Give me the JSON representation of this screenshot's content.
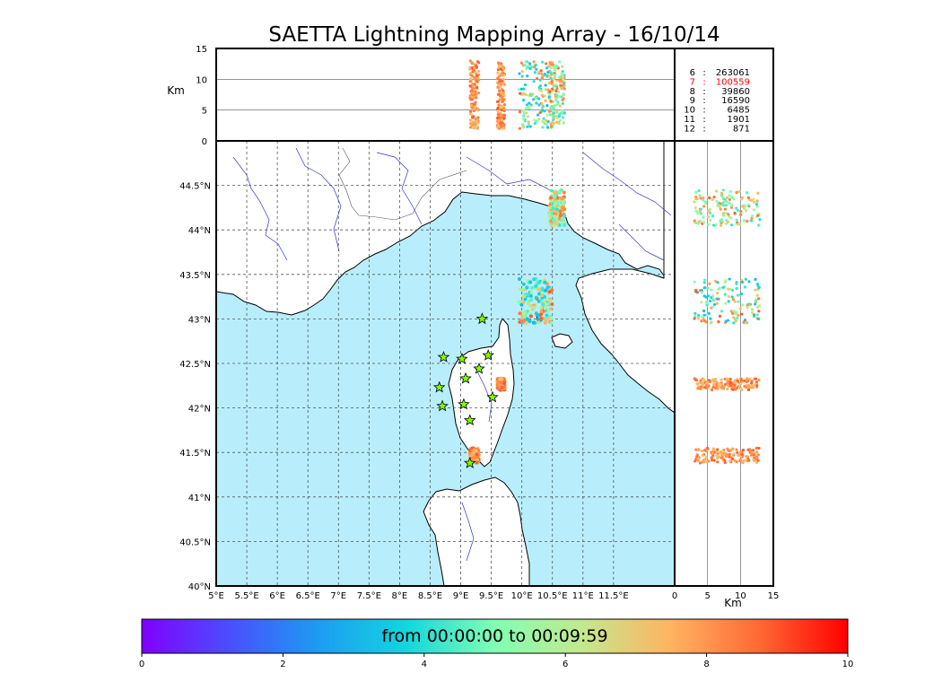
{
  "title": "SAETTA Lightning Mapping Array - 16/10/14",
  "chart_data": [
    {
      "type": "scatter",
      "panel": "map",
      "x_axis": {
        "label": "",
        "range": [
          5,
          12.5
        ],
        "ticks": [
          "5°E",
          "5.5°E",
          "6°E",
          "6.5°E",
          "7°E",
          "7.5°E",
          "8°E",
          "8.5°E",
          "9°E",
          "9.5°E",
          "10°E",
          "10.5°E",
          "11°E",
          "11.5°E"
        ],
        "tick_values": [
          5,
          5.5,
          6,
          6.5,
          7,
          7.5,
          8,
          8.5,
          9,
          9.5,
          10,
          10.5,
          11,
          11.5
        ]
      },
      "y_axis": {
        "label": "",
        "range": [
          40,
          45
        ],
        "ticks": [
          "40°N",
          "40.5°N",
          "41°N",
          "41.5°N",
          "42°N",
          "42.5°N",
          "43°N",
          "43.5°N",
          "44°N",
          "44.5°N"
        ],
        "tick_values": [
          40,
          40.5,
          41,
          41.5,
          42,
          42.5,
          43,
          43.5,
          44,
          44.5
        ]
      },
      "grid": true,
      "stations": [
        {
          "lon": 9.35,
          "lat": 43.0
        },
        {
          "lon": 8.72,
          "lat": 42.57
        },
        {
          "lon": 9.02,
          "lat": 42.55
        },
        {
          "lon": 9.45,
          "lat": 42.59
        },
        {
          "lon": 9.3,
          "lat": 42.44
        },
        {
          "lon": 9.08,
          "lat": 42.33
        },
        {
          "lon": 8.65,
          "lat": 42.23
        },
        {
          "lon": 9.52,
          "lat": 42.12
        },
        {
          "lon": 8.7,
          "lat": 42.02
        },
        {
          "lon": 9.05,
          "lat": 42.04
        },
        {
          "lon": 9.15,
          "lat": 41.86
        },
        {
          "lon": 9.15,
          "lat": 41.38
        }
      ],
      "sources": [
        {
          "lon_range": [
            10.45,
            10.7
          ],
          "lat_range": [
            44.05,
            44.45
          ],
          "time_range": [
            4,
            9
          ]
        },
        {
          "lon_range": [
            9.95,
            10.5
          ],
          "lat_range": [
            42.95,
            43.45
          ],
          "time_range": [
            3,
            9
          ]
        },
        {
          "lon_range": [
            9.6,
            9.72
          ],
          "lat_range": [
            42.2,
            42.33
          ],
          "time_range": [
            7,
            9
          ]
        },
        {
          "lon_range": [
            9.15,
            9.3
          ],
          "lat_range": [
            41.38,
            41.55
          ],
          "time_range": [
            7,
            9
          ]
        }
      ]
    },
    {
      "type": "scatter",
      "panel": "altitude-vs-longitude",
      "x_axis": {
        "range": [
          5,
          12.5
        ]
      },
      "y_axis": {
        "label": "Km",
        "range": [
          0,
          15
        ],
        "ticks": [
          "0",
          "5",
          "10",
          "15"
        ],
        "tick_values": [
          0,
          5,
          10,
          15
        ]
      },
      "grid": true
    },
    {
      "type": "scatter",
      "panel": "latitude-vs-altitude",
      "x_axis": {
        "label": "Km",
        "range": [
          0,
          15
        ],
        "ticks": [
          "0",
          "5",
          "10",
          "15"
        ],
        "tick_values": [
          0,
          5,
          10,
          15
        ]
      },
      "y_axis": {
        "range": [
          40,
          45
        ]
      },
      "grid": true
    },
    {
      "type": "table",
      "panel": "station-count",
      "rows": [
        {
          "stations": "6",
          "sep": ":",
          "count": "263061",
          "color": "#000000"
        },
        {
          "stations": "7",
          "sep": ":",
          "count": "100559",
          "color": "#ff0000"
        },
        {
          "stations": "8",
          "sep": ":",
          "count": "39860",
          "color": "#000000"
        },
        {
          "stations": "9",
          "sep": ":",
          "count": "16590",
          "color": "#000000"
        },
        {
          "stations": "10",
          "sep": ":",
          "count": "6485",
          "color": "#000000"
        },
        {
          "stations": "11",
          "sep": ":",
          "count": "1901",
          "color": "#000000"
        },
        {
          "stations": "12",
          "sep": ":",
          "count": "871",
          "color": "#000000"
        }
      ]
    },
    {
      "type": "heatmap",
      "panel": "colorbar",
      "caption": "from 00:00:00 to 00:09:59",
      "range": [
        0,
        10
      ],
      "ticks": [
        "0",
        "2",
        "4",
        "6",
        "8",
        "10"
      ],
      "tick_values": [
        0,
        2,
        4,
        6,
        8,
        10
      ],
      "colormap": "rainbow"
    }
  ],
  "colors": {
    "sea": "#b8eefc",
    "land": "#ffffff",
    "rivers": "#3333cc",
    "coast": "#000000",
    "stars": "#7fff00"
  }
}
